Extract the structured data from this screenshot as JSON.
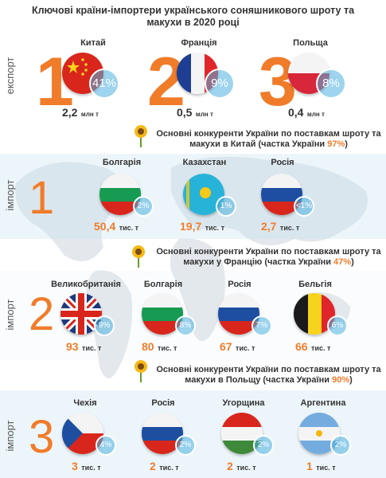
{
  "title": "Ключові країни-імпортери українського соняшникового шроту та макухи в 2020 році",
  "colors": {
    "accent": "#f07c2a",
    "bubble": "#4fb0de",
    "band": "#dceef7"
  },
  "export": {
    "label": "експорт",
    "items": [
      {
        "rank": "1",
        "country": "Китай",
        "share": "41%",
        "volume": "2,2",
        "unit": "млн т",
        "flag": "china-flag-icon"
      },
      {
        "rank": "2",
        "country": "Франція",
        "share": "9%",
        "volume": "0,5",
        "unit": "млн т",
        "flag": "france-flag-icon"
      },
      {
        "rank": "3",
        "country": "Польща",
        "share": "8%",
        "volume": "0,4",
        "unit": "млн т",
        "flag": "poland-flag-icon"
      }
    ]
  },
  "import1": {
    "label": "імпорт",
    "rank": "1",
    "head_pre": "Основні конкуренти України по поставкам шроту та макухи в Китай (частка України ",
    "head_pct": "97%",
    "head_post": ")",
    "items": [
      {
        "country": "Болгарія",
        "share": "2%",
        "volume": "50,4",
        "unit": "тис. т",
        "flag": "bulgaria-flag-icon"
      },
      {
        "country": "Казахстан",
        "share": "1%",
        "volume": "19,7",
        "unit": "тис. т",
        "flag": "kazakhstan-flag-icon"
      },
      {
        "country": "Росія",
        "share": "<1%",
        "volume": "2,7",
        "unit": "тис. т",
        "flag": "russia-flag-icon"
      }
    ]
  },
  "import2": {
    "label": "імпорт",
    "rank": "2",
    "head_pre": "Основні конкуренти України по поставкам шроту та макухи у Францію (частка України ",
    "head_pct": "47%",
    "head_post": ")",
    "items": [
      {
        "country": "Великобританія",
        "share": "9%",
        "volume": "93",
        "unit": "тис. т",
        "flag": "uk-flag-icon"
      },
      {
        "country": "Болгарія",
        "share": "8%",
        "volume": "80",
        "unit": "тис. т",
        "flag": "bulgaria-flag-icon"
      },
      {
        "country": "Росія",
        "share": "7%",
        "volume": "67",
        "unit": "тис. т",
        "flag": "russia-flag-icon"
      },
      {
        "country": "Бельгія",
        "share": "6%",
        "volume": "66",
        "unit": "тис. т",
        "flag": "belgium-flag-icon"
      }
    ]
  },
  "import3": {
    "label": "імпорт",
    "rank": "3",
    "head_pre": "Основні конкуренти України по поставкам шроту та макухи в Польщу (частка України ",
    "head_pct": "90%",
    "head_post": ")",
    "items": [
      {
        "country": "Чехія",
        "share": "4%",
        "volume": "3",
        "unit": "тис. т",
        "flag": "czechia-flag-icon"
      },
      {
        "country": "Росія",
        "share": "2%",
        "volume": "2",
        "unit": "тис. т",
        "flag": "russia-flag-icon"
      },
      {
        "country": "Угорщина",
        "share": "2%",
        "volume": "2",
        "unit": "тис. т",
        "flag": "hungary-flag-icon"
      },
      {
        "country": "Аргентина",
        "share": "2%",
        "volume": "1",
        "unit": "тис. т",
        "flag": "argentina-flag-icon"
      }
    ]
  }
}
